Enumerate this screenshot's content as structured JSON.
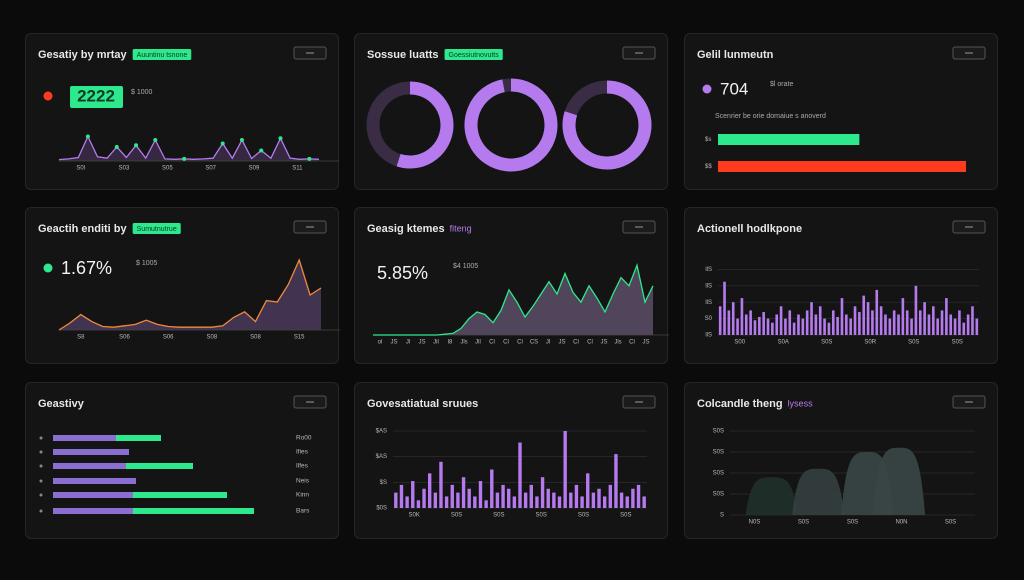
{
  "panels": [
    {
      "title": "Gesatiy by mrtay",
      "badge": "Auuntinu tsnone",
      "kpi": "2222",
      "kpi_note": "$ 1000",
      "dot": "#ff3b1f",
      "chart": {
        "type": "line",
        "xlabels": [
          "S0l",
          "S03",
          "S05",
          "S07",
          "S09",
          "S11"
        ],
        "values": [
          4,
          6,
          10,
          70,
          12,
          8,
          40,
          10,
          45,
          8,
          60,
          6,
          5,
          6,
          5,
          6,
          8,
          50,
          8,
          60,
          7,
          30,
          8,
          65,
          8,
          5,
          6,
          5
        ],
        "ylim": [
          0,
          100
        ],
        "color": "#b57bee",
        "fill": "#3d2c4a",
        "marker": "#2ee88e"
      }
    },
    {
      "title": "Sossue luatts",
      "badge": "Goessiutnovutts",
      "chart": {
        "type": "donut",
        "values": [
          55,
          97,
          80
        ],
        "xlim": [
          0,
          100
        ],
        "color": "#b57bee",
        "track": "#3a2c44"
      }
    },
    {
      "title": "Gelil lunmeutn",
      "kpi": "704",
      "kpi_note": "$l orate",
      "dot": "#b57bee",
      "note": "Scenrier be orie domaiue s anoverd",
      "chart": {
        "type": "meter",
        "categories": [
          "$s",
          "$$"
        ],
        "values": [
          57,
          100
        ],
        "xlim": [
          0,
          100
        ],
        "colors": [
          "#2ee88e",
          "#ff3b1f"
        ]
      }
    },
    {
      "title": "Geactih enditi by",
      "badge": "Sumutnutrue",
      "kpi": "1.67%",
      "kpi_note": "$ 1005",
      "dot": "#2ee88e",
      "chart": {
        "type": "line",
        "xlabels": [
          "S8",
          "S06",
          "S06",
          "S08",
          "S08",
          "S15"
        ],
        "values": [
          0,
          10,
          22,
          12,
          5,
          4,
          6,
          8,
          14,
          8,
          5,
          4,
          4,
          4,
          4,
          6,
          18,
          26,
          12,
          42,
          40,
          65,
          100,
          50,
          60
        ],
        "ylim": [
          0,
          100
        ],
        "color": "#f08a3a",
        "fill": "#4a3a5a"
      }
    },
    {
      "title": "Geasig ktemes",
      "tag": "fiteng",
      "kpi": "5.85%",
      "kpi_note": "$4 1005",
      "chart": {
        "type": "line",
        "xlabels": [
          "ol",
          "JS",
          "Jl",
          "JS",
          "Jil",
          "l8",
          "Jls",
          "Jll",
          "Cl",
          "Cl",
          "Cl",
          "CS",
          "Jl",
          "JS",
          "Cl",
          "Cl",
          "JS",
          "Jls",
          "Cl",
          "JS"
        ],
        "values": [
          0,
          0,
          0,
          0,
          0,
          0,
          0,
          0,
          0,
          1,
          2,
          8,
          20,
          28,
          25,
          15,
          30,
          55,
          40,
          22,
          35,
          50,
          65,
          50,
          75,
          52,
          40,
          60,
          45,
          28,
          50,
          70,
          60,
          85,
          40,
          60
        ],
        "ylim": [
          0,
          100
        ],
        "color": "#2ee88e",
        "fill": "#5a4e66"
      }
    },
    {
      "title": "Actionell hodlkpone",
      "chart": {
        "type": "bar",
        "xlabels": [
          "S00",
          "S0A",
          "S0S",
          "S0R",
          "S0S",
          "S0S"
        ],
        "values": [
          35,
          65,
          30,
          40,
          20,
          45,
          25,
          30,
          18,
          22,
          28,
          20,
          15,
          25,
          35,
          20,
          30,
          15,
          25,
          20,
          30,
          40,
          25,
          35,
          20,
          15,
          30,
          22,
          45,
          25,
          20,
          35,
          28,
          48,
          40,
          30,
          55,
          35,
          25,
          20,
          30,
          25,
          45,
          30,
          20,
          60,
          30,
          40,
          25,
          35,
          20,
          30,
          45,
          25,
          20,
          30,
          15,
          25,
          35,
          20
        ],
        "ylim": [
          0,
          100
        ],
        "yticks": [
          {
            "value": 80,
            "label": "llS"
          },
          {
            "value": 60,
            "label": "llS"
          },
          {
            "value": 40,
            "label": "llS"
          },
          {
            "value": 20,
            "label": "S0"
          },
          {
            "value": 0,
            "label": "llS"
          }
        ],
        "color": "#b57bee",
        "grid": true
      }
    },
    {
      "title": "Geastivy",
      "chart": {
        "type": "hbar",
        "categories": [
          "Ro00",
          "Ifies",
          "Ilfes",
          "Neis",
          "Kinn",
          "Bars"
        ],
        "xlim": [
          0,
          220
        ],
        "series": [
          {
            "color": "#8a6fd0",
            "values": [
              63,
              76,
              73,
              83,
              80,
              80
            ]
          },
          {
            "color": "#2ee88e",
            "values": [
              45,
              0,
              67,
              0,
              94,
              121
            ]
          }
        ]
      }
    },
    {
      "title": "Govesatiatual sruues",
      "chart": {
        "type": "bar",
        "xlabels": [
          "S0K",
          "S0S",
          "S0S",
          "S0S",
          "S0S",
          "S0S"
        ],
        "values": [
          20,
          30,
          15,
          35,
          10,
          25,
          45,
          20,
          60,
          15,
          30,
          20,
          40,
          25,
          15,
          35,
          10,
          50,
          20,
          30,
          25,
          15,
          85,
          20,
          30,
          15,
          40,
          25,
          20,
          15,
          100,
          20,
          30,
          15,
          45,
          20,
          25,
          15,
          30,
          70,
          20,
          15,
          25,
          30,
          15
        ],
        "ylim": [
          0,
          100
        ],
        "yticks": [
          {
            "value": 100,
            "label": "$AS"
          },
          {
            "value": 67,
            "label": "$AS"
          },
          {
            "value": 33,
            "label": "$S"
          },
          {
            "value": 0,
            "label": "$0S"
          }
        ],
        "color": "#b57bee",
        "grid": true
      }
    },
    {
      "title": "Colcandle theng",
      "tag": "lysess",
      "chart": {
        "type": "area",
        "xlabels": [
          "N0S",
          "S0S",
          "S0S",
          "N0N",
          "S0S"
        ],
        "x": [
          17,
          36,
          56,
          69
        ],
        "xlim": [
          0,
          100
        ],
        "values": [
          45,
          55,
          75,
          80
        ],
        "ylim": [
          0,
          100
        ],
        "yticks": [
          {
            "value": 100,
            "label": "S0S"
          },
          {
            "value": 75,
            "label": "S0S"
          },
          {
            "value": 50,
            "label": "S0S"
          },
          {
            "value": 25,
            "label": "S0S"
          },
          {
            "value": 0,
            "label": "S"
          }
        ],
        "colors": [
          "#1f302a",
          "#343f3f",
          "#3a4646",
          "#3a4646"
        ],
        "grid": true
      }
    }
  ]
}
